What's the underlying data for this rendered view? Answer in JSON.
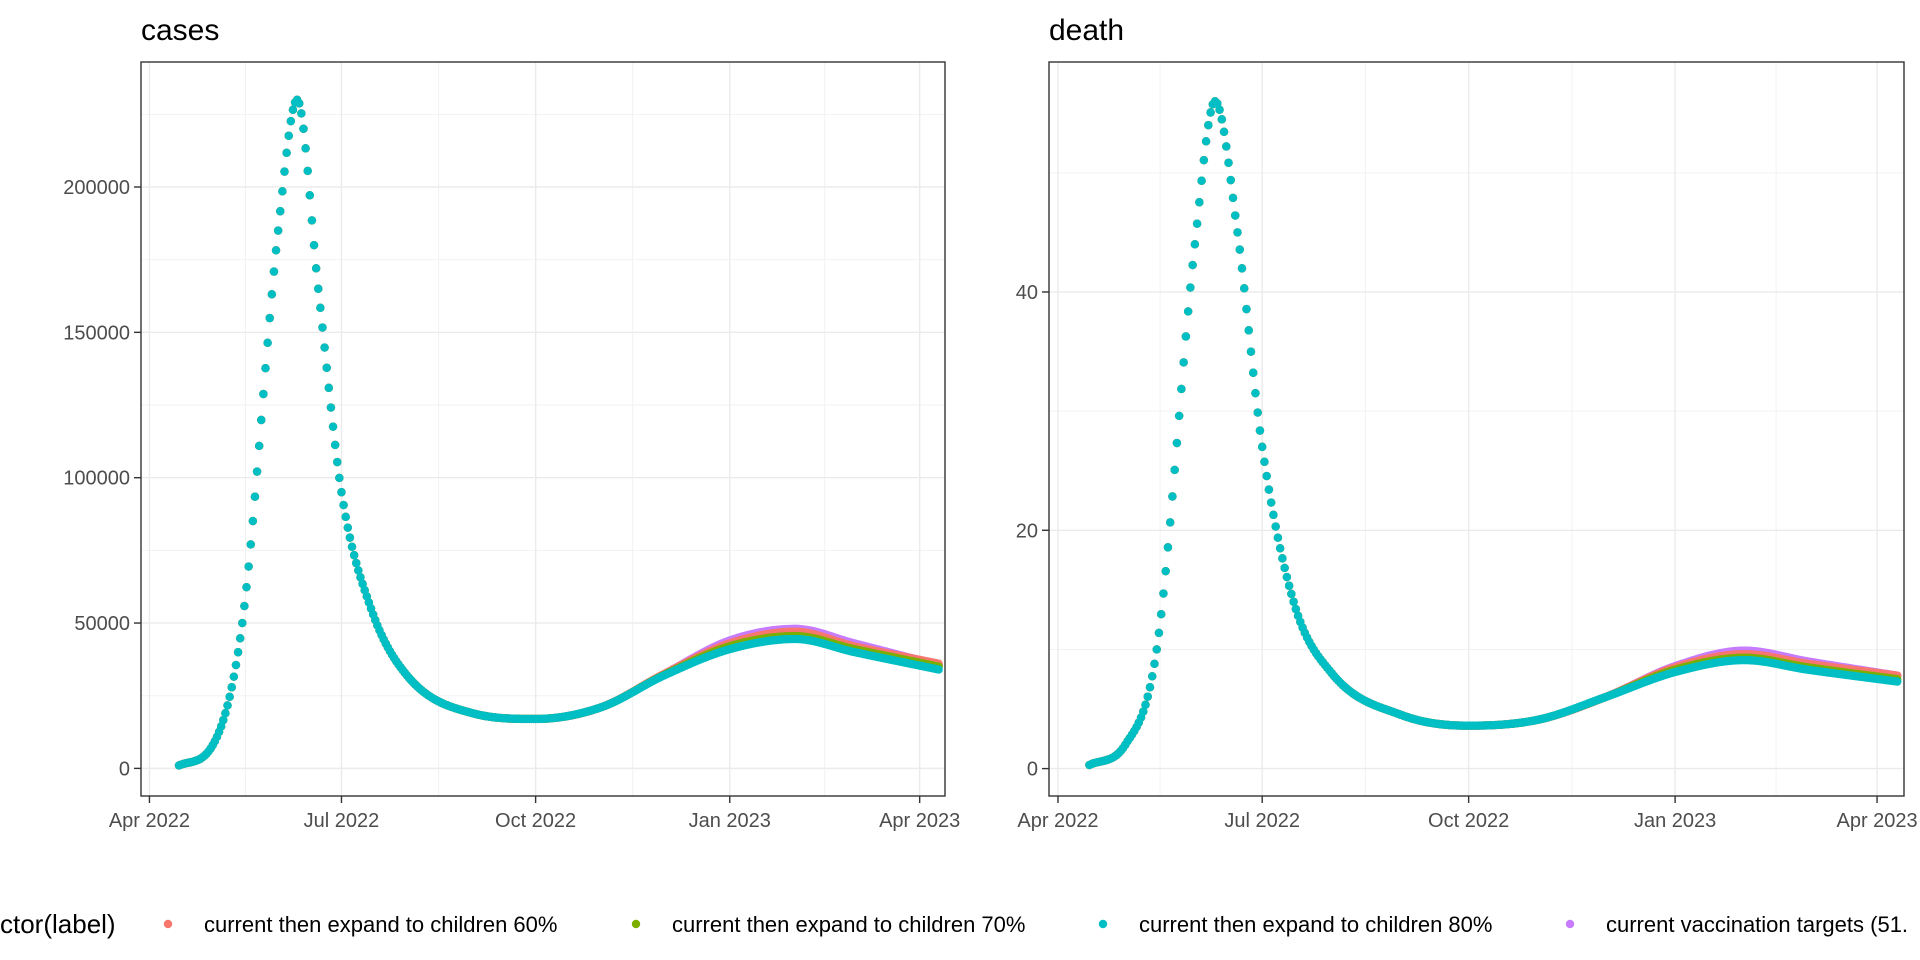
{
  "legend": {
    "title": "ctor(label)",
    "placement": "bottom",
    "entries": [
      {
        "label": "current then expand to children 60%",
        "color": "#F8766D"
      },
      {
        "label": "current then expand to children 70%",
        "color": "#7CAE00"
      },
      {
        "label": "current then expand to children 80%",
        "color": "#00BFC4"
      },
      {
        "label": "current vaccination targets (51.",
        "color": "#C77CFF"
      }
    ]
  },
  "chart_data": [
    {
      "type": "scatter",
      "title": "cases",
      "xlabel": "",
      "ylabel": "",
      "x_ticks": [
        "Apr 2022",
        "Jul 2022",
        "Oct 2022",
        "Jan 2023",
        "Apr 2023"
      ],
      "x_tick_dates": [
        "2022-04-01",
        "2022-07-01",
        "2022-10-01",
        "2023-01-01",
        "2023-04-01"
      ],
      "x_range": [
        "2022-03-28",
        "2023-04-13"
      ],
      "y_ticks": [
        "0",
        "50000",
        "100000",
        "150000",
        "200000"
      ],
      "y_tick_values": [
        0,
        50000,
        100000,
        150000,
        200000
      ],
      "ylim": [
        -9500,
        243000
      ],
      "grid": true,
      "series": [
        {
          "name": "current then expand to children 60%",
          "color": "#F8766D",
          "dates": [
            "2022-04-15",
            "2022-05-01",
            "2022-05-15",
            "2022-06-01",
            "2022-06-10",
            "2022-06-20",
            "2022-07-01",
            "2022-07-15",
            "2022-08-01",
            "2022-09-01",
            "2022-10-01",
            "2022-11-01",
            "2022-12-01",
            "2023-01-01",
            "2023-02-01",
            "2023-03-01",
            "2023-04-10"
          ],
          "values": [
            1000,
            8000,
            50000,
            185000,
            230000,
            165000,
            95000,
            55000,
            32000,
            19000,
            17000,
            21000,
            32500,
            43000,
            47000,
            42000,
            36000
          ]
        },
        {
          "name": "current then expand to children 70%",
          "color": "#7CAE00",
          "dates": [
            "2022-04-15",
            "2022-05-01",
            "2022-05-15",
            "2022-06-01",
            "2022-06-10",
            "2022-06-20",
            "2022-07-01",
            "2022-07-15",
            "2022-08-01",
            "2022-09-01",
            "2022-10-01",
            "2022-11-01",
            "2022-12-01",
            "2023-01-01",
            "2023-02-01",
            "2023-03-01",
            "2023-04-10"
          ],
          "values": [
            1000,
            8000,
            50000,
            185000,
            230000,
            165000,
            95000,
            55000,
            32000,
            19000,
            17000,
            21000,
            32200,
            42000,
            45500,
            41000,
            35000
          ]
        },
        {
          "name": "current then expand to children 80%",
          "color": "#00BFC4",
          "dates": [
            "2022-04-15",
            "2022-05-01",
            "2022-05-15",
            "2022-06-01",
            "2022-06-10",
            "2022-06-20",
            "2022-07-01",
            "2022-07-15",
            "2022-08-01",
            "2022-09-01",
            "2022-10-01",
            "2022-11-01",
            "2022-12-01",
            "2023-01-01",
            "2023-02-01",
            "2023-03-01",
            "2023-04-10"
          ],
          "values": [
            1000,
            8000,
            50000,
            185000,
            230000,
            165000,
            95000,
            55000,
            32000,
            19000,
            17000,
            21000,
            32000,
            41000,
            44500,
            40000,
            34000
          ]
        },
        {
          "name": "current vaccination targets (51.",
          "color": "#C77CFF",
          "dates": [
            "2022-04-15",
            "2022-05-01",
            "2022-05-15",
            "2022-06-01",
            "2022-06-10",
            "2022-06-20",
            "2022-07-01",
            "2022-07-15",
            "2022-08-01",
            "2022-09-01",
            "2022-10-01",
            "2022-11-01",
            "2022-12-01",
            "2023-01-01",
            "2023-02-01",
            "2023-03-01",
            "2023-04-10"
          ],
          "values": [
            1000,
            8000,
            50000,
            185000,
            230000,
            165000,
            95000,
            55000,
            32000,
            19000,
            17000,
            21000,
            32500,
            44000,
            48000,
            43000,
            35500
          ]
        }
      ]
    },
    {
      "type": "scatter",
      "title": "death",
      "xlabel": "",
      "ylabel": "",
      "x_ticks": [
        "Apr 2022",
        "Jul 2022",
        "Oct 2022",
        "Jan 2023",
        "Apr 2023"
      ],
      "x_tick_dates": [
        "2022-04-01",
        "2022-07-01",
        "2022-10-01",
        "2023-01-01",
        "2023-04-01"
      ],
      "x_range": [
        "2022-03-28",
        "2023-04-13"
      ],
      "y_ticks": [
        "0",
        "20",
        "40"
      ],
      "y_tick_values": [
        0,
        20,
        40
      ],
      "ylim": [
        -2.3,
        59.3
      ],
      "grid": true,
      "series": [
        {
          "name": "current then expand to children 60%",
          "color": "#F8766D",
          "dates": [
            "2022-04-15",
            "2022-05-01",
            "2022-05-15",
            "2022-06-01",
            "2022-06-10",
            "2022-06-20",
            "2022-07-01",
            "2022-07-15",
            "2022-08-01",
            "2022-09-01",
            "2022-10-01",
            "2022-11-01",
            "2022-12-01",
            "2023-01-01",
            "2023-02-01",
            "2023-03-01",
            "2023-04-10"
          ],
          "values": [
            0.3,
            2,
            10,
            44,
            56,
            45,
            27,
            14,
            8,
            4.5,
            3.6,
            4.1,
            6,
            8.5,
            9.6,
            8.8,
            7.8
          ]
        },
        {
          "name": "current then expand to children 70%",
          "color": "#7CAE00",
          "dates": [
            "2022-04-15",
            "2022-05-01",
            "2022-05-15",
            "2022-06-01",
            "2022-06-10",
            "2022-06-20",
            "2022-07-01",
            "2022-07-15",
            "2022-08-01",
            "2022-09-01",
            "2022-10-01",
            "2022-11-01",
            "2022-12-01",
            "2023-01-01",
            "2023-02-01",
            "2023-03-01",
            "2023-04-10"
          ],
          "values": [
            0.3,
            2,
            10,
            44,
            56,
            45,
            27,
            14,
            8,
            4.5,
            3.6,
            4.1,
            6,
            8.3,
            9.3,
            8.5,
            7.5
          ]
        },
        {
          "name": "current then expand to children 80%",
          "color": "#00BFC4",
          "dates": [
            "2022-04-15",
            "2022-05-01",
            "2022-05-15",
            "2022-06-01",
            "2022-06-10",
            "2022-06-20",
            "2022-07-01",
            "2022-07-15",
            "2022-08-01",
            "2022-09-01",
            "2022-10-01",
            "2022-11-01",
            "2022-12-01",
            "2023-01-01",
            "2023-02-01",
            "2023-03-01",
            "2023-04-10"
          ],
          "values": [
            0.3,
            2,
            10,
            44,
            56,
            45,
            27,
            14,
            8,
            4.5,
            3.6,
            4.1,
            6,
            8.1,
            9.1,
            8.3,
            7.3
          ]
        },
        {
          "name": "current vaccination targets (51.",
          "color": "#C77CFF",
          "dates": [
            "2022-04-15",
            "2022-05-01",
            "2022-05-15",
            "2022-06-01",
            "2022-06-10",
            "2022-06-20",
            "2022-07-01",
            "2022-07-15",
            "2022-08-01",
            "2022-09-01",
            "2022-10-01",
            "2022-11-01",
            "2022-12-01",
            "2023-01-01",
            "2023-02-01",
            "2023-03-01",
            "2023-04-10"
          ],
          "values": [
            0.3,
            2,
            10,
            44,
            56,
            45,
            27,
            14,
            8,
            4.5,
            3.6,
            4.1,
            6,
            8.6,
            9.9,
            9.0,
            7.8
          ]
        }
      ]
    }
  ]
}
